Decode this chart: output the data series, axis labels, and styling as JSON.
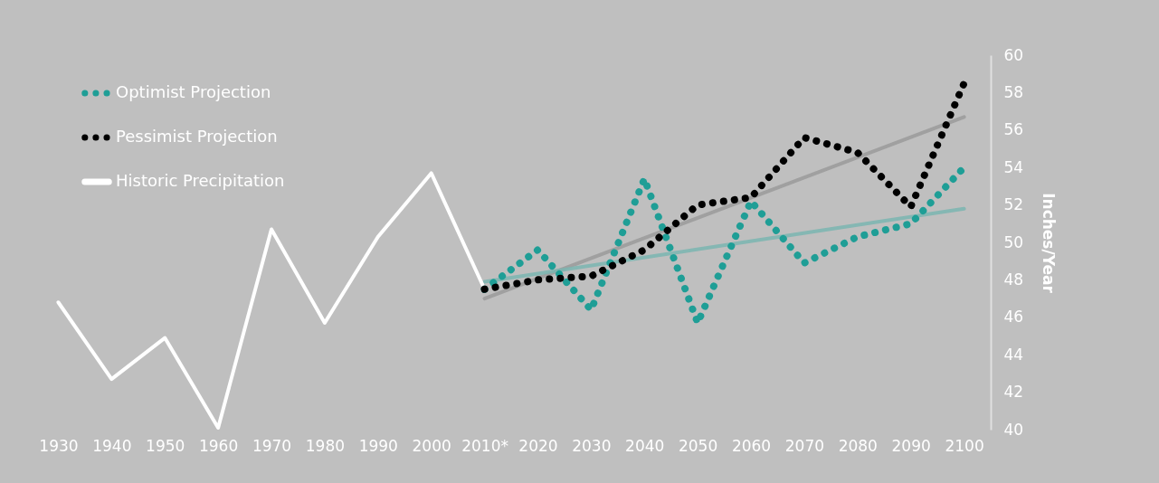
{
  "chart_data": {
    "type": "line",
    "ylabel": "Inches/Year",
    "categories": [
      "1930",
      "1940",
      "1950",
      "1960",
      "1970",
      "1980",
      "1990",
      "2000",
      "2010*",
      "2020",
      "2030",
      "2040",
      "2050",
      "2060",
      "2070",
      "2080",
      "2090",
      "2100"
    ],
    "series": [
      {
        "name": "Optimist Projection",
        "color": "#1f9e96",
        "line_style": "dotted",
        "values": [
          null,
          null,
          null,
          null,
          null,
          null,
          null,
          null,
          47.5,
          49.6,
          46.4,
          53.4,
          45.7,
          52.2,
          48.9,
          50.3,
          51.0,
          54.0
        ]
      },
      {
        "name": "Pessimist Projection",
        "color": "#000000",
        "line_style": "dotted",
        "values": [
          null,
          null,
          null,
          null,
          null,
          null,
          null,
          null,
          47.5,
          48.0,
          48.2,
          49.6,
          52.0,
          52.4,
          55.6,
          54.8,
          51.9,
          58.5
        ]
      },
      {
        "name": "Historic Precipitation",
        "color": "#ffffff",
        "line_style": "solid",
        "values": [
          46.8,
          42.7,
          44.9,
          40.1,
          50.7,
          45.7,
          50.3,
          53.7,
          47.5,
          null,
          null,
          null,
          null,
          null,
          null,
          null,
          null,
          null
        ]
      },
      {
        "color": "#9a9a9a",
        "line_style": "solid",
        "values": [
          null,
          null,
          null,
          null,
          null,
          null,
          null,
          null,
          47.0,
          null,
          null,
          null,
          null,
          null,
          null,
          null,
          null,
          56.7
        ]
      },
      {
        "color": "#7ab5b0",
        "line_style": "solid",
        "values": [
          null,
          null,
          null,
          null,
          null,
          null,
          null,
          null,
          47.9,
          null,
          null,
          null,
          null,
          null,
          null,
          null,
          null,
          51.8
        ]
      }
    ],
    "ylim": [
      40,
      60
    ],
    "yticks": [
      40,
      42,
      44,
      46,
      48,
      50,
      52,
      54,
      56,
      58,
      60
    ],
    "legend": "top left"
  }
}
